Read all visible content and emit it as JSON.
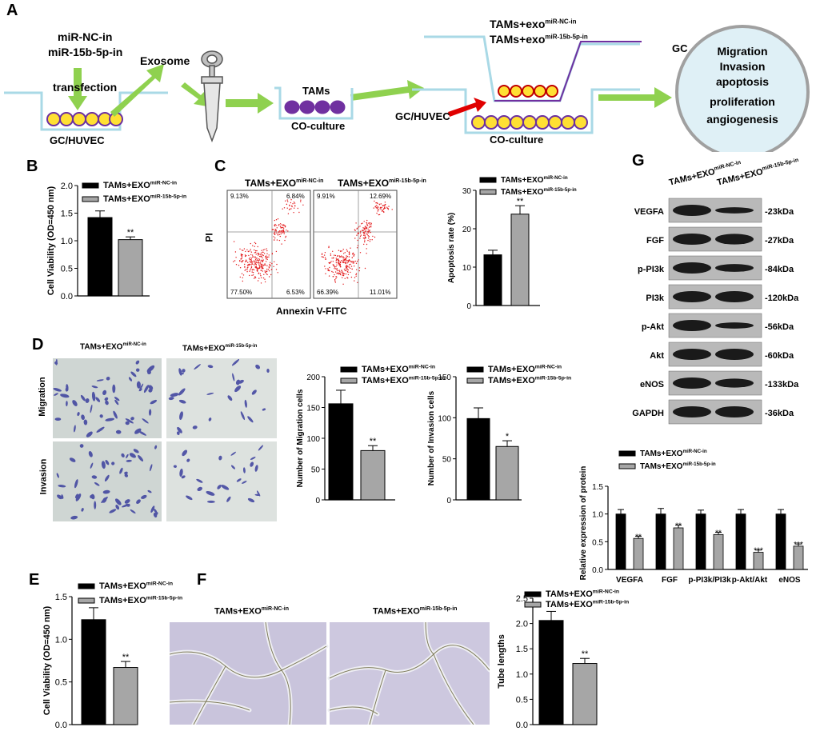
{
  "legend_nc": "TAMs+EXO",
  "legend_15b": "TAMs+EXO",
  "sup_nc": "miR-NC-in",
  "sup_15b": "miR-15b-5p-in",
  "panelA": {
    "letter": "A",
    "mirna_nc": "miR-NC-in",
    "mirna_15b": "miR-15b-5p-in",
    "transfection": "transfection",
    "exosome": "Exosome",
    "gc_huvec_1": "GC/HUVEC",
    "tams": "TAMs",
    "coculture_1": "CO-culture",
    "tams_exo_nc": "TAMs+exo",
    "tams_exo_15b": "TAMs+exo",
    "gc_huvec_2": "GC/HUVEC",
    "coculture_2": "CO-culture",
    "gc": "GC",
    "outcomes": [
      "Migration",
      "Invasion",
      "apoptosis",
      "proliferation",
      "angiogenesis"
    ]
  },
  "panelB": {
    "letter": "B",
    "star": "**"
  },
  "panelC": {
    "letter": "C",
    "pi": "PI",
    "annexin": "Annexin V-FITC",
    "quads_nc": [
      "9.13%",
      "6.84%",
      "77.50%",
      "6.53%"
    ],
    "quads_15b": [
      "9.91%",
      "12.69%",
      "66.39%",
      "11.01%"
    ],
    "star": "**"
  },
  "panelD": {
    "letter": "D",
    "migration": "Migration",
    "invasion": "Invasion",
    "star_mig": "**",
    "star_inv": "*"
  },
  "panelE": {
    "letter": "E",
    "star": "**"
  },
  "panelF": {
    "letter": "F",
    "star": "**"
  },
  "panelG": {
    "letter": "G",
    "blots": [
      {
        "name": "VEGFA",
        "kda": "-23kDa",
        "nc": 1.0,
        "m15b": 0.55
      },
      {
        "name": "FGF",
        "kda": "-27kDa",
        "nc": 1.0,
        "m15b": 0.95
      },
      {
        "name": "p-PI3k",
        "kda": "-84kDa",
        "nc": 1.0,
        "m15b": 0.7
      },
      {
        "name": "PI3k",
        "kda": "-120kDa",
        "nc": 1.0,
        "m15b": 1.0
      },
      {
        "name": "p-Akt",
        "kda": "-56kDa",
        "nc": 1.0,
        "m15b": 0.55
      },
      {
        "name": "Akt",
        "kda": "-60kDa",
        "nc": 1.0,
        "m15b": 1.0
      },
      {
        "name": "eNOS",
        "kda": "-133kDa",
        "nc": 1.0,
        "m15b": 0.8
      },
      {
        "name": "GAPDH",
        "kda": "-36kDa",
        "nc": 1.0,
        "m15b": 1.0
      }
    ],
    "stars": [
      "**",
      "**",
      "**",
      "***",
      "***"
    ]
  },
  "chart_data": [
    {
      "id": "B",
      "type": "bar",
      "categories": [
        "TAMs+EXO miR-NC-in",
        "TAMs+EXO miR-15b-5p-in"
      ],
      "values": [
        1.42,
        1.02
      ],
      "errors": [
        0.12,
        0.05
      ],
      "ylabel": "Cell Viability (OD=450 nm)",
      "ylim": [
        0,
        2.0
      ],
      "yticks": [
        "0.0",
        "0.5",
        "1.0",
        "1.5",
        "2.0"
      ]
    },
    {
      "id": "C",
      "type": "bar",
      "categories": [
        "TAMs+EXO miR-NC-in",
        "TAMs+EXO miR-15b-5p-in"
      ],
      "values": [
        13.2,
        23.8
      ],
      "errors": [
        1.2,
        2.2
      ],
      "ylabel": "Apoptosis rate (%)",
      "ylim": [
        0,
        30
      ],
      "yticks": [
        "0",
        "10",
        "20",
        "30"
      ]
    },
    {
      "id": "D-migration",
      "type": "bar",
      "categories": [
        "TAMs+EXO miR-NC-in",
        "TAMs+EXO miR-15b-5p-in"
      ],
      "values": [
        156,
        80
      ],
      "errors": [
        22,
        8
      ],
      "ylabel": "Number of Migration cells",
      "ylim": [
        0,
        200
      ],
      "yticks": [
        "0",
        "50",
        "100",
        "150",
        "200"
      ]
    },
    {
      "id": "D-invasion",
      "type": "bar",
      "categories": [
        "TAMs+EXO miR-NC-in",
        "TAMs+EXO miR-15b-5p-in"
      ],
      "values": [
        99,
        65
      ],
      "errors": [
        13,
        7
      ],
      "ylabel": "Number of Invasion cells",
      "ylim": [
        0,
        150
      ],
      "yticks": [
        "0",
        "50",
        "100",
        "150"
      ]
    },
    {
      "id": "E",
      "type": "bar",
      "categories": [
        "TAMs+EXO miR-NC-in",
        "TAMs+EXO miR-15b-5p-in"
      ],
      "values": [
        1.23,
        0.67
      ],
      "errors": [
        0.14,
        0.07
      ],
      "ylabel": "Cell Viability (OD=450 nm)",
      "ylim": [
        0,
        1.5
      ],
      "yticks": [
        "0.0",
        "0.5",
        "1.0",
        "1.5"
      ]
    },
    {
      "id": "F",
      "type": "bar",
      "categories": [
        "TAMs+EXO miR-NC-in",
        "TAMs+EXO miR-15b-5p-in"
      ],
      "values": [
        2.06,
        1.21
      ],
      "errors": [
        0.18,
        0.1
      ],
      "ylabel": "Tube lengths",
      "ylim": [
        0,
        2.5
      ],
      "yticks": [
        "0.0",
        "0.5",
        "1.0",
        "1.5",
        "2.0",
        "2.5"
      ]
    },
    {
      "id": "G",
      "type": "bar",
      "categories": [
        "VEGFA",
        "FGF",
        "p-PI3k/PI3k",
        "p-Akt/Akt",
        "eNOS"
      ],
      "series": [
        {
          "name": "TAMs+EXO miR-NC-in",
          "values": [
            1.0,
            1.0,
            1.0,
            1.0,
            1.0
          ],
          "errors": [
            0.08,
            0.1,
            0.07,
            0.08,
            0.08
          ]
        },
        {
          "name": "TAMs+EXO miR-15b-5p-in",
          "values": [
            0.56,
            0.75,
            0.63,
            0.31,
            0.42
          ],
          "errors": [
            0.04,
            0.05,
            0.04,
            0.04,
            0.04
          ]
        }
      ],
      "ylabel": "Relative expression of protein",
      "ylim": [
        0,
        1.5
      ],
      "yticks": [
        "0.0",
        "0.5",
        "1.0",
        "1.5"
      ]
    }
  ]
}
